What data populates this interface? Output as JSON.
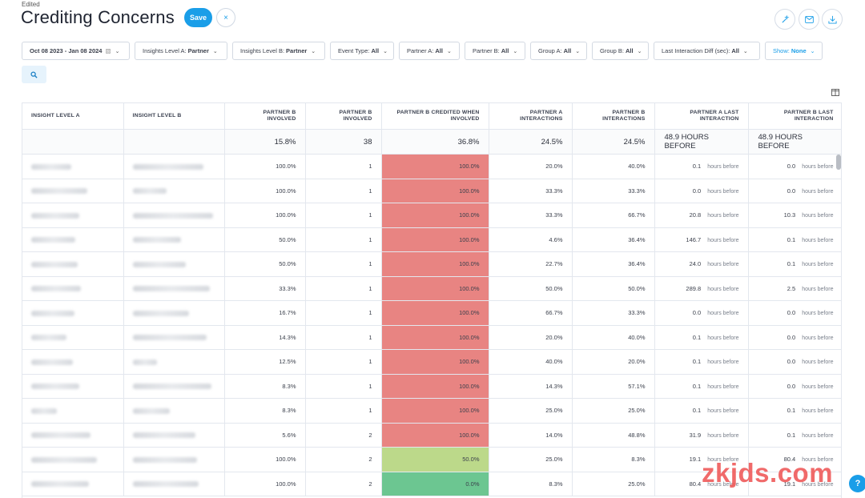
{
  "page": {
    "status": "Edited",
    "title": "Crediting Concerns",
    "save_label": "Save",
    "close_symbol": "×"
  },
  "toolbar_icons": [
    "magic-wand-icon",
    "mail-icon",
    "download-icon"
  ],
  "filters": [
    {
      "label": "Oct 08 2023 - Jan 08 2024",
      "value": "",
      "icon": "calendar-icon"
    },
    {
      "label": "Insights Level A:",
      "value": "Partner"
    },
    {
      "label": "Insights Level B:",
      "value": "Partner"
    },
    {
      "label": "Event Type:",
      "value": "All"
    },
    {
      "label": "Partner A:",
      "value": "All"
    },
    {
      "label": "Partner B:",
      "value": "All"
    },
    {
      "label": "Group A:",
      "value": "All"
    },
    {
      "label": "Group B:",
      "value": "All"
    },
    {
      "label": "Last Interaction Diff (sec):",
      "value": "All"
    },
    {
      "label": "Show:",
      "value": "None"
    }
  ],
  "table": {
    "columns": [
      "Insight Level A",
      "Insight Level B",
      "Partner B Involved",
      "Partner B Involved",
      "Partner B Credited When Involved",
      "Partner A Interactions",
      "Partner B Interactions",
      "Partner A Last Interaction",
      "Partner B Last Interaction"
    ],
    "summary": [
      "",
      "",
      "15.8%",
      "38",
      "36.8%",
      "24.5%",
      "24.5%",
      "48.9 HOURS BEFORE",
      "48.9 HOURS BEFORE"
    ],
    "hours_suffix": "hours before",
    "rows": [
      {
        "a_w": 50,
        "b_w": 88,
        "b_inv_pct": "100.0%",
        "b_inv": "1",
        "credited": "100.0%",
        "level": 1.0,
        "a_int": "20.0%",
        "b_int": "40.0%",
        "a_last": "0.1",
        "b_last": "0.0"
      },
      {
        "a_w": 70,
        "b_w": 42,
        "b_inv_pct": "100.0%",
        "b_inv": "1",
        "credited": "100.0%",
        "level": 1.0,
        "a_int": "33.3%",
        "b_int": "33.3%",
        "a_last": "0.0",
        "b_last": "0.0"
      },
      {
        "a_w": 60,
        "b_w": 100,
        "b_inv_pct": "100.0%",
        "b_inv": "1",
        "credited": "100.0%",
        "level": 1.0,
        "a_int": "33.3%",
        "b_int": "66.7%",
        "a_last": "20.8",
        "b_last": "10.3"
      },
      {
        "a_w": 55,
        "b_w": 60,
        "b_inv_pct": "50.0%",
        "b_inv": "1",
        "credited": "100.0%",
        "level": 1.0,
        "a_int": "4.6%",
        "b_int": "36.4%",
        "a_last": "146.7",
        "b_last": "0.1"
      },
      {
        "a_w": 58,
        "b_w": 66,
        "b_inv_pct": "50.0%",
        "b_inv": "1",
        "credited": "100.0%",
        "level": 1.0,
        "a_int": "22.7%",
        "b_int": "36.4%",
        "a_last": "24.0",
        "b_last": "0.1"
      },
      {
        "a_w": 62,
        "b_w": 96,
        "b_inv_pct": "33.3%",
        "b_inv": "1",
        "credited": "100.0%",
        "level": 1.0,
        "a_int": "50.0%",
        "b_int": "50.0%",
        "a_last": "289.8",
        "b_last": "2.5"
      },
      {
        "a_w": 54,
        "b_w": 70,
        "b_inv_pct": "16.7%",
        "b_inv": "1",
        "credited": "100.0%",
        "level": 1.0,
        "a_int": "66.7%",
        "b_int": "33.3%",
        "a_last": "0.0",
        "b_last": "0.0"
      },
      {
        "a_w": 44,
        "b_w": 92,
        "b_inv_pct": "14.3%",
        "b_inv": "1",
        "credited": "100.0%",
        "level": 1.0,
        "a_int": "20.0%",
        "b_int": "40.0%",
        "a_last": "0.1",
        "b_last": "0.0"
      },
      {
        "a_w": 52,
        "b_w": 30,
        "b_inv_pct": "12.5%",
        "b_inv": "1",
        "credited": "100.0%",
        "level": 1.0,
        "a_int": "40.0%",
        "b_int": "20.0%",
        "a_last": "0.1",
        "b_last": "0.0"
      },
      {
        "a_w": 60,
        "b_w": 98,
        "b_inv_pct": "8.3%",
        "b_inv": "1",
        "credited": "100.0%",
        "level": 1.0,
        "a_int": "14.3%",
        "b_int": "57.1%",
        "a_last": "0.1",
        "b_last": "0.0"
      },
      {
        "a_w": 32,
        "b_w": 46,
        "b_inv_pct": "8.3%",
        "b_inv": "1",
        "credited": "100.0%",
        "level": 1.0,
        "a_int": "25.0%",
        "b_int": "25.0%",
        "a_last": "0.1",
        "b_last": "0.1"
      },
      {
        "a_w": 74,
        "b_w": 78,
        "b_inv_pct": "5.6%",
        "b_inv": "2",
        "credited": "100.0%",
        "level": 1.0,
        "a_int": "14.0%",
        "b_int": "48.8%",
        "a_last": "31.9",
        "b_last": "0.1"
      },
      {
        "a_w": 82,
        "b_w": 80,
        "b_inv_pct": "100.0%",
        "b_inv": "2",
        "credited": "50.0%",
        "level": 0.5,
        "a_int": "25.0%",
        "b_int": "8.3%",
        "a_last": "19.1",
        "b_last": "80.4"
      },
      {
        "a_w": 72,
        "b_w": 82,
        "b_inv_pct": "100.0%",
        "b_inv": "2",
        "credited": "0.0%",
        "level": 0.0,
        "a_int": "8.3%",
        "b_int": "25.0%",
        "a_last": "80.4",
        "b_last": "19.1"
      }
    ]
  },
  "colors": {
    "accent": "#1a9ee8",
    "credited_high": "#e88482",
    "credited_mid": "#bcd98a",
    "credited_low": "#6cc691"
  },
  "help_label": "?",
  "watermark": "zkjds.com"
}
